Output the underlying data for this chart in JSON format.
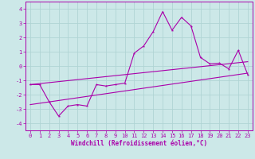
{
  "xlabel": "Windchill (Refroidissement éolien,°C)",
  "xlim": [
    -0.5,
    23.5
  ],
  "ylim": [
    -4.5,
    4.5
  ],
  "yticks": [
    -4,
    -3,
    -2,
    -1,
    0,
    1,
    2,
    3,
    4
  ],
  "xticks": [
    0,
    1,
    2,
    3,
    4,
    5,
    6,
    7,
    8,
    9,
    10,
    11,
    12,
    13,
    14,
    15,
    16,
    17,
    18,
    19,
    20,
    21,
    22,
    23
  ],
  "background_color": "#cce8e8",
  "grid_color": "#b0d4d4",
  "line_color": "#aa00aa",
  "line1_x": [
    0,
    1,
    2,
    3,
    4,
    5,
    6,
    7,
    8,
    9,
    10,
    11,
    12,
    13,
    14,
    15,
    16,
    17,
    18,
    19,
    20,
    21,
    22,
    23
  ],
  "line1_y": [
    -1.3,
    -1.3,
    -2.5,
    -3.5,
    -2.8,
    -2.7,
    -2.8,
    -1.3,
    -1.4,
    -1.3,
    -1.2,
    0.9,
    1.4,
    2.4,
    3.8,
    2.5,
    3.4,
    2.8,
    0.6,
    0.15,
    0.2,
    -0.2,
    1.1,
    -0.6
  ],
  "line2_x": [
    0,
    23
  ],
  "line2_y": [
    -1.3,
    0.3
  ],
  "line3_x": [
    0,
    23
  ],
  "line3_y": [
    -2.7,
    -0.5
  ],
  "xlabel_fontsize": 5.5,
  "tick_fontsize": 5.0
}
